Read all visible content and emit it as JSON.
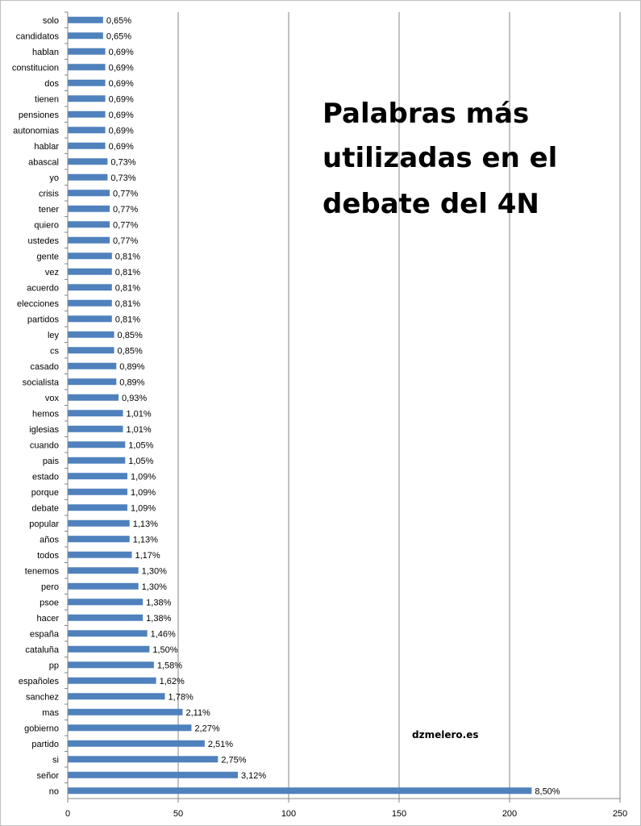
{
  "chart_data": {
    "type": "bar",
    "orientation": "horizontal",
    "title_lines": [
      "Palabras más",
      "utilizadas en el",
      "debate del 4N"
    ],
    "credit": "dzmelero.es",
    "xlabel": "",
    "ylabel": "",
    "xlim": [
      0,
      250
    ],
    "x_ticks": [
      "0",
      "50",
      "100",
      "150",
      "200",
      "250"
    ],
    "grid": true,
    "bar_color": "#4F81BD",
    "categories": [
      "solo",
      "candidatos",
      "hablan",
      "constitucion",
      "dos",
      "tienen",
      "pensiones",
      "autonomias",
      "hablar",
      "abascal",
      "yo",
      "crisis",
      "tener",
      "quiero",
      "ustedes",
      "gente",
      "vez",
      "acuerdo",
      "elecciones",
      "partidos",
      "ley",
      "cs",
      "casado",
      "socialista",
      "vox",
      "hemos",
      "iglesias",
      "cuando",
      "pais",
      "estado",
      "porque",
      "debate",
      "popular",
      "años",
      "todos",
      "tenemos",
      "pero",
      "psoe",
      "hacer",
      "españa",
      "cataluña",
      "pp",
      "españoles",
      "sanchez",
      "mas",
      "gobierno",
      "partido",
      "si",
      "señor",
      "no"
    ],
    "values": [
      16,
      16,
      17,
      17,
      17,
      17,
      17,
      17,
      17,
      18,
      18,
      19,
      19,
      19,
      19,
      20,
      20,
      20,
      20,
      20,
      21,
      21,
      22,
      22,
      23,
      25,
      25,
      26,
      26,
      27,
      27,
      27,
      28,
      28,
      29,
      32,
      32,
      34,
      34,
      36,
      37,
      39,
      40,
      44,
      52,
      56,
      62,
      68,
      77,
      210
    ],
    "data_labels": [
      "0,65%",
      "0,65%",
      "0,69%",
      "0,69%",
      "0,69%",
      "0,69%",
      "0,69%",
      "0,69%",
      "0,69%",
      "0,73%",
      "0,73%",
      "0,77%",
      "0,77%",
      "0,77%",
      "0,77%",
      "0,81%",
      "0,81%",
      "0,81%",
      "0,81%",
      "0,81%",
      "0,85%",
      "0,85%",
      "0,89%",
      "0,89%",
      "0,93%",
      "1,01%",
      "1,01%",
      "1,05%",
      "1,05%",
      "1,09%",
      "1,09%",
      "1,09%",
      "1,13%",
      "1,13%",
      "1,17%",
      "1,30%",
      "1,30%",
      "1,38%",
      "1,38%",
      "1,46%",
      "1,50%",
      "1,58%",
      "1,62%",
      "1,78%",
      "2,11%",
      "2,27%",
      "2,51%",
      "2,75%",
      "3,12%",
      "8,50%"
    ]
  }
}
